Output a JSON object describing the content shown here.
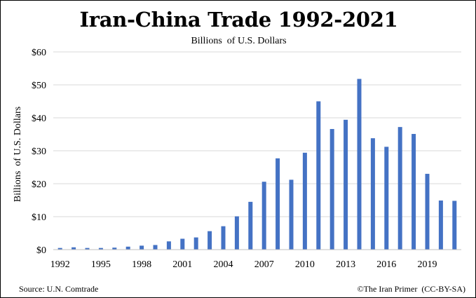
{
  "footer": {
    "source": "Source: U.N. Comtrade",
    "credit": "©The Iran Primer  (CC-BY-SA)"
  },
  "colors": {
    "bar": "#4472c4",
    "grid": "#d9d9d9",
    "axis": "#bfbfbf"
  },
  "chart_data": {
    "type": "bar",
    "title": "Iran-China Trade 1992-2021",
    "subtitle": "Billions  of U.S. Dollars",
    "xlabel": "",
    "ylabel": "Billions  of U.S. Dollars",
    "ylim": [
      0,
      60
    ],
    "yticks": [
      "$0",
      "$10",
      "$20",
      "$30",
      "$40",
      "$50",
      "$60"
    ],
    "ytick_values": [
      0,
      10,
      20,
      30,
      40,
      50,
      60
    ],
    "grid": true,
    "legend": "none",
    "categories": [
      "1992",
      "1993",
      "1994",
      "1995",
      "1996",
      "1997",
      "1998",
      "1999",
      "2000",
      "2001",
      "2002",
      "2003",
      "2004",
      "2005",
      "2006",
      "2007",
      "2008",
      "2009",
      "2010",
      "2011",
      "2012",
      "2013",
      "2014",
      "2015",
      "2016",
      "2017",
      "2018",
      "2019",
      "2020",
      "2021"
    ],
    "xtick_labels": [
      "1992",
      "1995",
      "1998",
      "2001",
      "2004",
      "2007",
      "2010",
      "2013",
      "2016",
      "2019"
    ],
    "values": [
      0.5,
      0.7,
      0.5,
      0.5,
      0.6,
      0.9,
      1.2,
      1.4,
      2.5,
      3.3,
      3.7,
      5.6,
      7.1,
      10.1,
      14.5,
      20.6,
      27.7,
      21.2,
      29.4,
      45.0,
      36.6,
      39.4,
      51.8,
      33.8,
      31.2,
      37.2,
      35.1,
      23.0,
      14.9,
      14.8
    ]
  }
}
